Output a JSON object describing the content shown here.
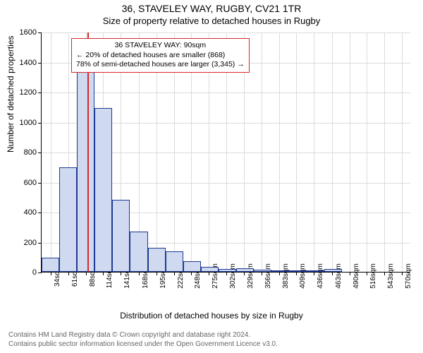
{
  "title_line1": "36, STAVELEY WAY, RUGBY, CV21 1TR",
  "title_line2": "Size of property relative to detached houses in Rugby",
  "chart": {
    "type": "histogram",
    "y_axis_label": "Number of detached properties",
    "x_axis_label": "Distribution of detached houses by size in Rugby",
    "ylim": [
      0,
      1600
    ],
    "ytick_step": 200,
    "yticks": [
      0,
      200,
      400,
      600,
      800,
      1000,
      1200,
      1400,
      1600
    ],
    "xlim": [
      20,
      584
    ],
    "xticks": [
      34,
      61,
      88,
      114,
      141,
      168,
      195,
      222,
      248,
      275,
      302,
      329,
      356,
      383,
      409,
      436,
      463,
      490,
      516,
      543,
      570
    ],
    "xtick_labels": [
      "34sqm",
      "61sqm",
      "88sqm",
      "114sqm",
      "141sqm",
      "168sqm",
      "195sqm",
      "222sqm",
      "248sqm",
      "275sqm",
      "302sqm",
      "329sqm",
      "356sqm",
      "383sqm",
      "409sqm",
      "436sqm",
      "463sqm",
      "490sqm",
      "516sqm",
      "543sqm",
      "570sqm"
    ],
    "bar_fill": "#cfd9ef",
    "bar_stroke": "#1f3a93",
    "grid_color": "#dcdcdc",
    "background_color": "#ffffff",
    "bin_width": 27,
    "bin_starts": [
      20,
      47,
      74,
      101,
      128,
      155,
      182,
      209,
      236,
      263,
      290,
      317,
      344,
      371,
      398,
      425,
      452
    ],
    "bin_values": [
      95,
      695,
      1500,
      1090,
      480,
      270,
      160,
      135,
      70,
      35,
      18,
      22,
      12,
      10,
      10,
      6,
      18
    ],
    "marker": {
      "x": 90,
      "color": "#d62728"
    }
  },
  "annotation": {
    "line1": "36 STAVELEY WAY: 90sqm",
    "line2": "← 20% of detached houses are smaller (868)",
    "line3": "78% of semi-detached houses are larger (3,345) →",
    "border_color": "#d62728"
  },
  "footer": {
    "line1": "Contains HM Land Registry data © Crown copyright and database right 2024.",
    "line2": "Contains public sector information licensed under the Open Government Licence v3.0."
  }
}
